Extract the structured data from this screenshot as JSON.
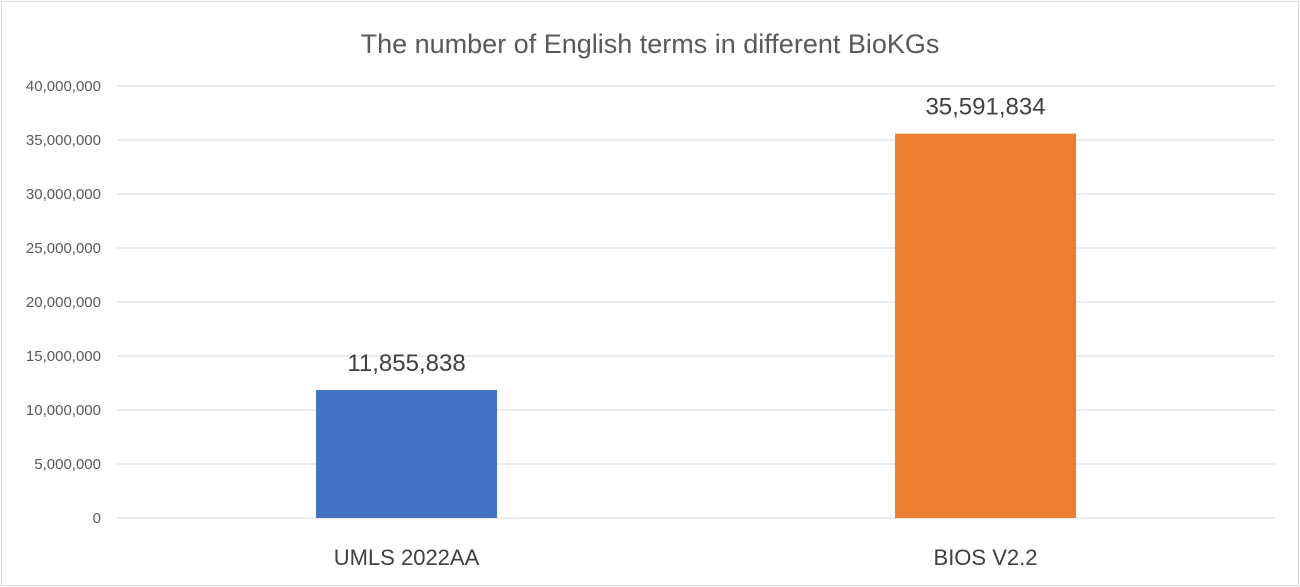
{
  "chart_data": {
    "type": "bar",
    "title": "The number of English terms in different BioKGs",
    "categories": [
      "UMLS 2022AA",
      "BIOS V2.2"
    ],
    "values": [
      11855838,
      35591834
    ],
    "value_labels": [
      "11,855,838",
      "35,591,834"
    ],
    "colors": [
      "#4472c4",
      "#ed7d31"
    ],
    "ylim": [
      0,
      40000000
    ],
    "yticks": [
      0,
      5000000,
      10000000,
      15000000,
      20000000,
      25000000,
      30000000,
      35000000,
      40000000
    ],
    "ytick_labels": [
      "0",
      "5,000,000",
      "10,000,000",
      "15,000,000",
      "20,000,000",
      "25,000,000",
      "30,000,000",
      "35,000,000",
      "40,000,000"
    ],
    "xlabel": "",
    "ylabel": "",
    "grid": true,
    "legend": "none"
  }
}
